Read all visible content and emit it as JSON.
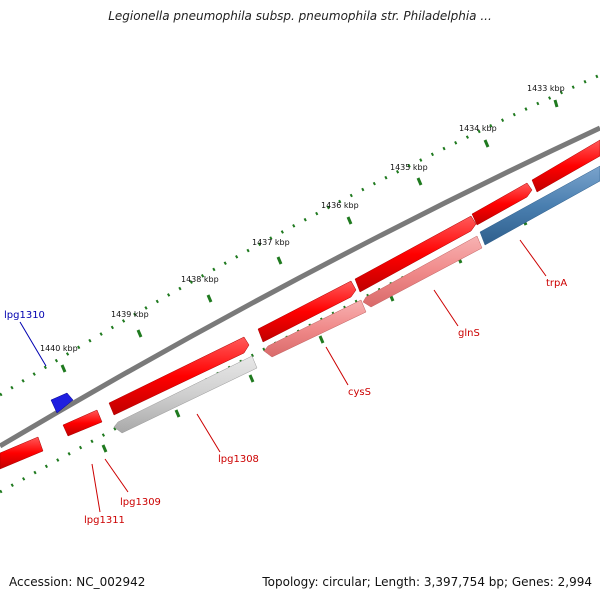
{
  "title": "Legionella pneumophila subsp. pneumophila str. Philadelphia ...",
  "footer": {
    "accession": "Accession: NC_002942",
    "summary": "Topology: circular; Length: 3,397,754 bp; Genes: 2,994"
  },
  "colors": {
    "forward_gene": "#ff1a1a",
    "reverse_gene_light": "#f08a8a",
    "reverse_gene_grey": "#cfcfcf",
    "reverse_gene_blue": "#4a7fb0",
    "other_feature": "#1f1fe0",
    "backbone": "#7a7a7a",
    "tick_green": "#1f7a1f",
    "label_red": "#cc0000",
    "label_blue": "#0000b0"
  },
  "ruler": {
    "ticks": [
      {
        "label": "1433 kbp"
      },
      {
        "label": "1434 kbp"
      },
      {
        "label": "1435 kbp"
      },
      {
        "label": "1436 kbp"
      },
      {
        "label": "1437 kbp"
      },
      {
        "label": "1438 kbp"
      },
      {
        "label": "1439 kbp"
      },
      {
        "label": "1440 kbp"
      }
    ]
  },
  "genes": [
    {
      "name": "trpA",
      "strand": "reverse",
      "color": "blue"
    },
    {
      "name": "glnS",
      "strand": "reverse",
      "color": "light"
    },
    {
      "name": "cysS",
      "strand": "reverse",
      "color": "light"
    },
    {
      "name": "lpg1308",
      "strand": "reverse",
      "color": "grey"
    },
    {
      "name": "lpg1309",
      "strand": "forward",
      "color": "red"
    },
    {
      "name": "lpg1311",
      "strand": "forward",
      "color": "red"
    },
    {
      "name": "lpg1310",
      "strand": "other",
      "color": "blue"
    }
  ]
}
